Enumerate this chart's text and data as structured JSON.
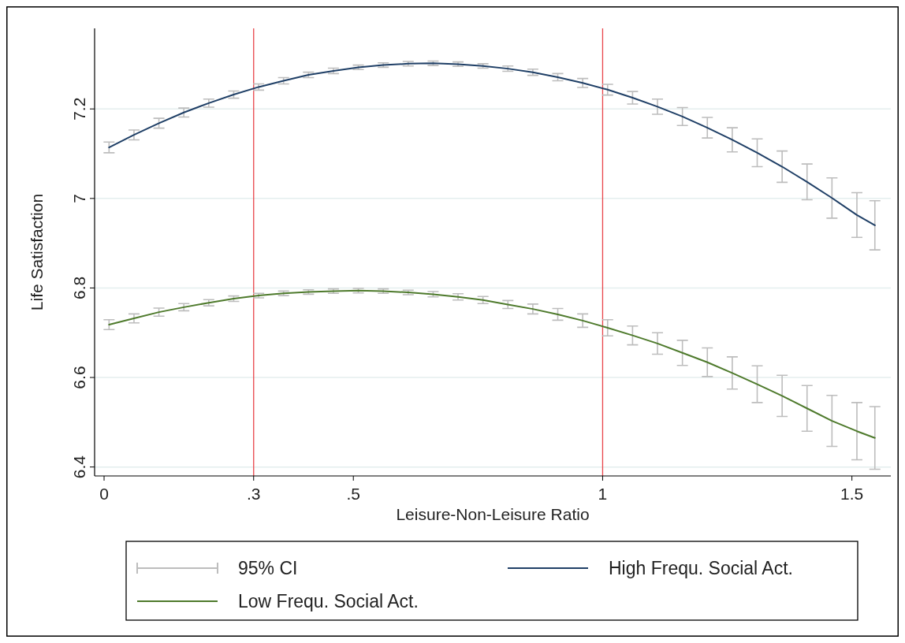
{
  "chart_data": {
    "type": "line",
    "xlabel": "Leisure-Non-Leisure Ratio",
    "ylabel": "Life Satisfaction",
    "x": [
      0.01,
      0.06,
      0.11,
      0.16,
      0.21,
      0.26,
      0.31,
      0.36,
      0.41,
      0.46,
      0.51,
      0.56,
      0.61,
      0.66,
      0.71,
      0.76,
      0.81,
      0.86,
      0.91,
      0.96,
      1.01,
      1.06,
      1.11,
      1.16,
      1.21,
      1.26,
      1.31,
      1.36,
      1.41,
      1.46,
      1.51,
      1.546
    ],
    "xlim": [
      -0.019,
      1.578
    ],
    "xticks": [
      0,
      {
        "value": 0.3,
        "label": ".3"
      },
      {
        "value": 0.5,
        "label": ".5"
      },
      1,
      1.5
    ],
    "ylim": [
      6.38,
      7.38
    ],
    "yticks": [
      6.4,
      6.6,
      6.8,
      7,
      7.2
    ],
    "grid": "y",
    "legend": "bottom",
    "marker": "none",
    "line_style": "solid",
    "annotations": [
      "95% CI"
    ],
    "ref_lines": [
      {
        "axis": "x",
        "value": 0.3,
        "color": "#e8454a"
      },
      {
        "axis": "x",
        "value": 1,
        "color": "#e8454a"
      }
    ],
    "series": [
      {
        "name": "High Frequ. Social Act.",
        "color": "#1f3f66",
        "values": [
          7.114,
          7.142,
          7.168,
          7.192,
          7.213,
          7.232,
          7.249,
          7.263,
          7.276,
          7.285,
          7.293,
          7.298,
          7.301,
          7.302,
          7.3,
          7.296,
          7.29,
          7.282,
          7.271,
          7.258,
          7.243,
          7.225,
          7.205,
          7.183,
          7.158,
          7.131,
          7.102,
          7.071,
          7.037,
          7.001,
          6.963,
          6.94
        ],
        "errors": [
          0.012,
          0.011,
          0.011,
          0.01,
          0.009,
          0.008,
          0.007,
          0.007,
          0.006,
          0.006,
          0.005,
          0.005,
          0.005,
          0.005,
          0.005,
          0.005,
          0.006,
          0.007,
          0.008,
          0.01,
          0.012,
          0.014,
          0.017,
          0.02,
          0.023,
          0.027,
          0.031,
          0.035,
          0.04,
          0.045,
          0.05,
          0.055
        ]
      },
      {
        "name": "Low Frequ. Social Act.",
        "color": "#4e7a2c",
        "values": [
          6.718,
          6.732,
          6.746,
          6.757,
          6.767,
          6.776,
          6.783,
          6.788,
          6.791,
          6.793,
          6.794,
          6.793,
          6.79,
          6.786,
          6.78,
          6.773,
          6.763,
          6.753,
          6.741,
          6.727,
          6.711,
          6.694,
          6.676,
          6.655,
          6.634,
          6.61,
          6.585,
          6.559,
          6.531,
          6.503,
          6.48,
          6.465
        ],
        "errors": [
          0.011,
          0.01,
          0.009,
          0.008,
          0.007,
          0.006,
          0.005,
          0.005,
          0.005,
          0.005,
          0.005,
          0.005,
          0.005,
          0.006,
          0.007,
          0.008,
          0.009,
          0.011,
          0.013,
          0.015,
          0.018,
          0.021,
          0.024,
          0.028,
          0.032,
          0.036,
          0.041,
          0.046,
          0.051,
          0.057,
          0.064,
          0.07
        ]
      }
    ]
  }
}
